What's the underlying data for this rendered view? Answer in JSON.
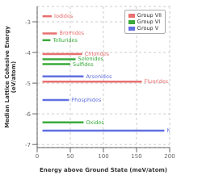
{
  "chart_data": {
    "type": "bar",
    "orientation": "horizontal",
    "title": "",
    "xlabel": "Energy above Ground State (meV/atom)",
    "ylabel": "Median Lattice Cohesive Energy\n(eV/atom)",
    "xlim": [
      0,
      200
    ],
    "ylim": [
      -7.1,
      -2.5
    ],
    "xticks": [
      0,
      50,
      100,
      150,
      200
    ],
    "yticks": [
      -3,
      -4,
      -5,
      -6,
      -7
    ],
    "grid": true,
    "legend": "upper right",
    "series": [
      {
        "name": "Group VII",
        "color": "#e87070",
        "bars": [
          {
            "label": "Iodides",
            "y": -2.82,
            "x_start": 8,
            "x_end": 22
          },
          {
            "label": "Bromides",
            "y": -3.38,
            "x_start": 8,
            "x_end": 30
          },
          {
            "label": "Chlorides",
            "y": -4.05,
            "x_start": 8,
            "x_end": 68
          },
          {
            "label": "Fluorides",
            "y": -4.95,
            "x_start": 8,
            "x_end": 158
          }
        ]
      },
      {
        "name": "Group VI",
        "color": "#3aaa3a",
        "bars": [
          {
            "label": "Tellurides",
            "y": -3.6,
            "x_start": 8,
            "x_end": 20
          },
          {
            "label": "Selenides",
            "y": -4.22,
            "x_start": 8,
            "x_end": 58
          },
          {
            "label": "Sulfides",
            "y": -4.38,
            "x_start": 8,
            "x_end": 50
          },
          {
            "label": "Oxides",
            "y": -6.28,
            "x_start": 8,
            "x_end": 70
          }
        ]
      },
      {
        "name": "Group V",
        "color": "#6070e0",
        "bars": [
          {
            "label": "Arsenides",
            "y": -4.78,
            "x_start": 8,
            "x_end": 70
          },
          {
            "label": "Phosphides",
            "y": -5.55,
            "x_start": 8,
            "x_end": 48
          },
          {
            "label": "Nitrides",
            "y": -6.55,
            "x_start": 8,
            "x_end": 192
          }
        ]
      }
    ]
  }
}
